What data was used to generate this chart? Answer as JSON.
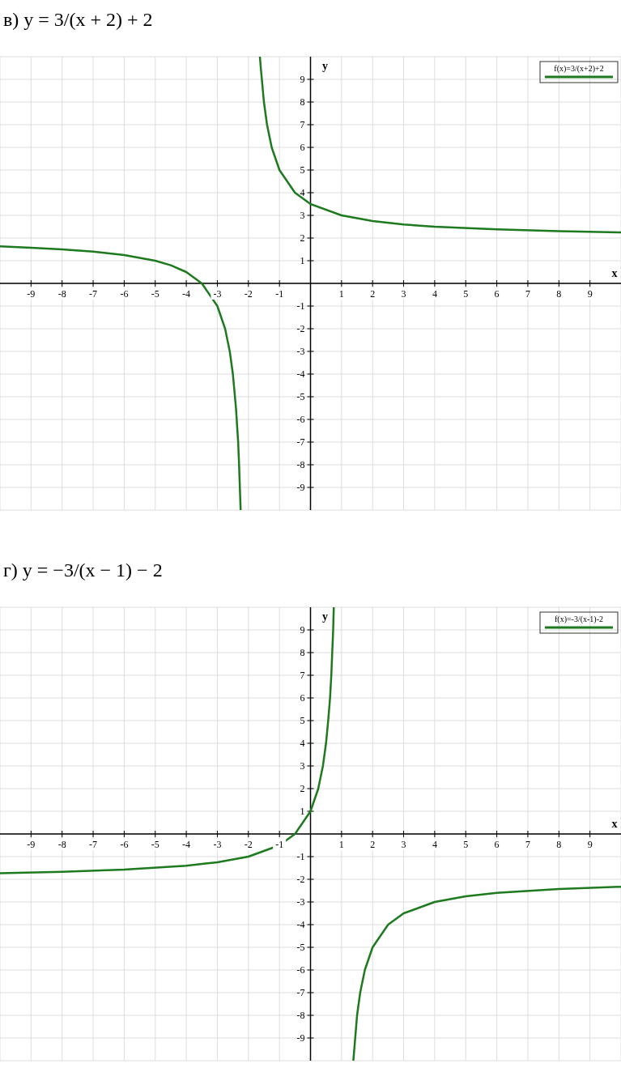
{
  "chart_data": [
    {
      "type": "line",
      "title": "в) y = 3/(x + 2) + 2",
      "xlabel": "x",
      "ylabel": "y",
      "xlim": [
        -10,
        10
      ],
      "ylim": [
        -10,
        10
      ],
      "xticks": [
        -9,
        -8,
        -7,
        -6,
        -5,
        -4,
        -3,
        -2,
        -1,
        1,
        2,
        3,
        4,
        5,
        6,
        7,
        8,
        9
      ],
      "yticks": [
        -9,
        -8,
        -7,
        -6,
        -5,
        -4,
        -3,
        -2,
        -1,
        1,
        2,
        3,
        4,
        5,
        6,
        7,
        8,
        9
      ],
      "grid": true,
      "legend": "top right",
      "series": [
        {
          "name": "f(x)=3/(x+2)+2",
          "color": "#1e7a1e",
          "x": [
            -10,
            -9,
            -8,
            -7,
            -6,
            -5,
            -4.5,
            -4,
            -3.5,
            -3,
            -2.75,
            -2.6,
            -2.5,
            -2.4,
            -2.33,
            -2.3,
            -2.25,
            -2,
            -1.63,
            -1.6,
            -1.5,
            -1.4,
            -1.25,
            -1,
            -0.5,
            0,
            1,
            2,
            3,
            4,
            6,
            8,
            10
          ],
          "values": [
            1.63,
            1.57,
            1.5,
            1.4,
            1.25,
            1,
            0.8,
            0.5,
            0,
            -1,
            -2,
            -3,
            -4,
            -5.5,
            -7,
            -8,
            -10,
            null,
            10,
            9.5,
            8,
            7,
            6,
            5,
            4,
            3.5,
            3,
            2.75,
            2.6,
            2.5,
            2.38,
            2.3,
            2.25
          ]
        }
      ]
    },
    {
      "type": "line",
      "title": "г) y = −3/(x − 1) − 2",
      "xlabel": "x",
      "ylabel": "y",
      "xlim": [
        -10,
        10
      ],
      "ylim": [
        -10,
        10
      ],
      "xticks": [
        -9,
        -8,
        -7,
        -6,
        -5,
        -4,
        -3,
        -2,
        -1,
        1,
        2,
        3,
        4,
        5,
        6,
        7,
        8,
        9
      ],
      "yticks": [
        -9,
        -8,
        -7,
        -6,
        -5,
        -4,
        -3,
        -2,
        -1,
        1,
        2,
        3,
        4,
        5,
        6,
        7,
        8,
        9
      ],
      "grid": true,
      "legend": "top right",
      "series": [
        {
          "name": "f(x)=-3/(x-1)-2",
          "color": "#1e7a1e",
          "x": [
            -10,
            -8,
            -6,
            -4,
            -3,
            -2,
            -1,
            -0.5,
            0,
            0.25,
            0.4,
            0.5,
            0.57,
            0.63,
            0.67,
            0.7,
            0.73,
            0.75,
            1,
            1.38,
            1.5,
            1.6,
            1.75,
            2,
            2.5,
            3,
            4,
            5,
            6,
            8,
            10
          ],
          "values": [
            -1.73,
            -1.67,
            -1.57,
            -1.4,
            -1.25,
            -1,
            -0.5,
            0,
            1,
            2,
            3,
            4,
            5,
            6,
            7,
            8,
            9,
            10,
            null,
            -10,
            -8,
            -7,
            -6,
            -5,
            -4,
            -3.5,
            -3,
            -2.75,
            -2.6,
            -2.43,
            -2.33
          ]
        }
      ]
    }
  ]
}
